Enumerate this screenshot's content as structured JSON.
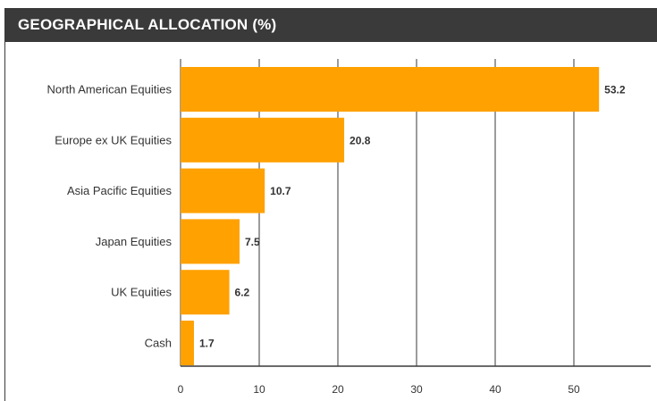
{
  "header": {
    "title": "GEOGRAPHICAL ALLOCATION (%)"
  },
  "colors": {
    "bar": "#ffa100",
    "header_bg": "#3a3a3a",
    "grid": "#3a3a3a",
    "text": "#333333"
  },
  "chart_data": {
    "type": "bar",
    "orientation": "horizontal",
    "title": "GEOGRAPHICAL ALLOCATION (%)",
    "categories": [
      "North American Equities",
      "Europe ex UK Equities",
      "Asia Pacific Equities",
      "Japan Equities",
      "UK Equities",
      "Cash"
    ],
    "values": [
      53.2,
      20.8,
      10.7,
      7.5,
      6.2,
      1.7
    ],
    "value_labels": [
      "53.2",
      "20.8",
      "10.7",
      "7.5",
      "6.2",
      "1.7"
    ],
    "xticks": [
      0,
      10,
      20,
      30,
      40,
      50
    ],
    "xtick_labels": [
      "0",
      "10",
      "20",
      "30",
      "40",
      "50"
    ],
    "xlim": [
      0,
      60
    ],
    "grid": true
  }
}
